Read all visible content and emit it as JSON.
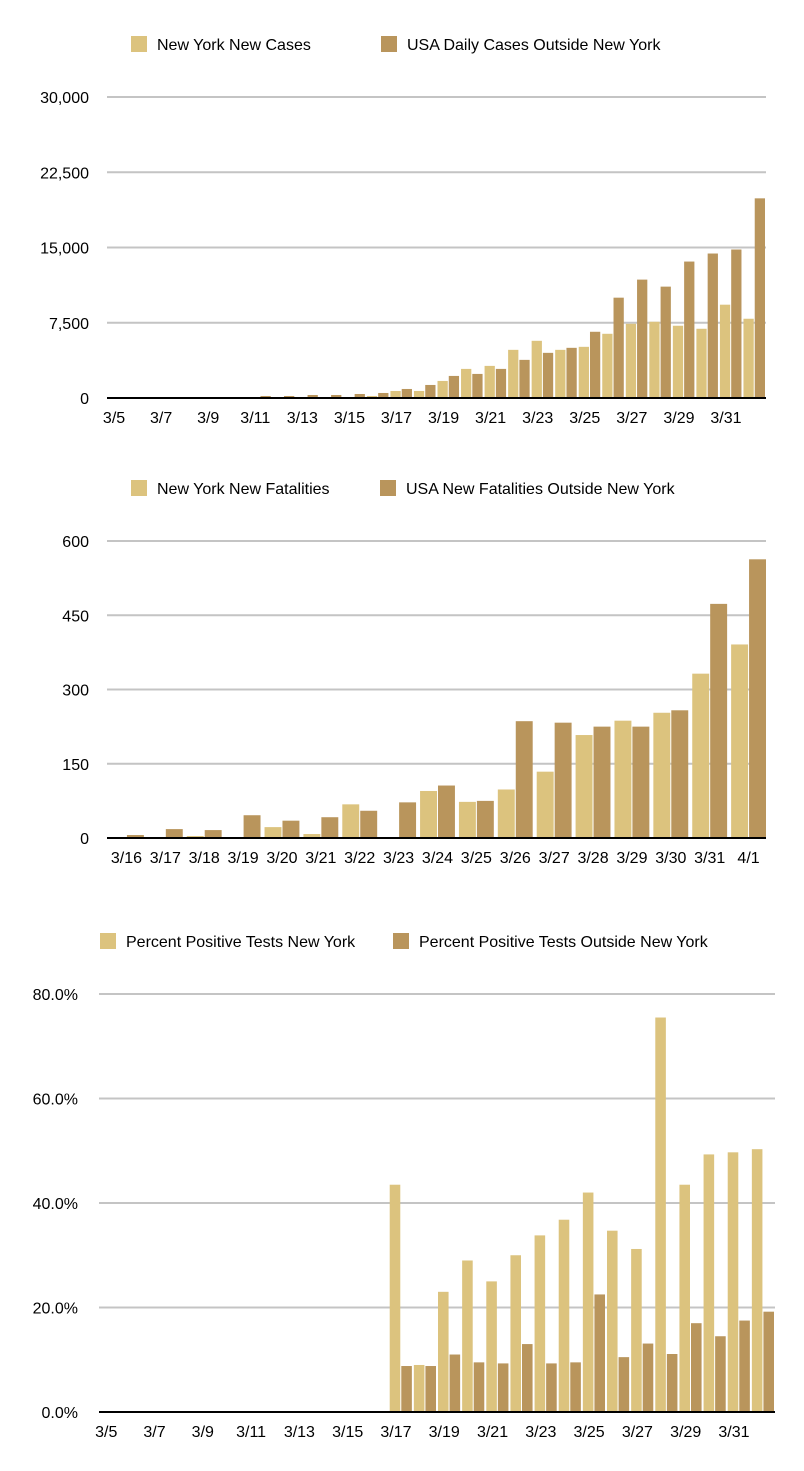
{
  "colors": {
    "new_york": "#dcc37e",
    "outside": "#b9955c"
  },
  "chart_data": [
    {
      "type": "bar",
      "title": "",
      "legend_position": "top",
      "grid": true,
      "ylim": [
        0,
        30000
      ],
      "yticks": [
        "0",
        "7,500",
        "15,000",
        "22,500",
        "30,000"
      ],
      "ytick_values": [
        0,
        7500,
        15000,
        22500,
        30000
      ],
      "x_tick_labels": [
        "3/5",
        "3/7",
        "3/9",
        "3/11",
        "3/13",
        "3/15",
        "3/17",
        "3/19",
        "3/21",
        "3/23",
        "3/25",
        "3/27",
        "3/29",
        "3/31"
      ],
      "categories": [
        "3/5",
        "3/6",
        "3/7",
        "3/8",
        "3/9",
        "3/10",
        "3/11",
        "3/12",
        "3/13",
        "3/14",
        "3/15",
        "3/16",
        "3/17",
        "3/18",
        "3/19",
        "3/20",
        "3/21",
        "3/22",
        "3/23",
        "3/24",
        "3/25",
        "3/26",
        "3/27",
        "3/28",
        "3/29",
        "3/30",
        "3/31",
        "4/1"
      ],
      "series": [
        {
          "name": "New York New Cases",
          "color_key": "new_york",
          "values": [
            0,
            0,
            0,
            0,
            0,
            0,
            50,
            50,
            60,
            50,
            100,
            200,
            700,
            700,
            1700,
            2900,
            3200,
            4800,
            5700,
            4800,
            5100,
            6400,
            7400,
            7600,
            7200,
            6900,
            9300,
            7900
          ]
        },
        {
          "name": "USA Daily Cases Outside New York",
          "color_key": "outside",
          "values": [
            0,
            0,
            0,
            0,
            0,
            0,
            200,
            200,
            300,
            300,
            400,
            500,
            900,
            1300,
            2200,
            2400,
            2900,
            3800,
            4500,
            5000,
            6600,
            10000,
            11800,
            11100,
            13600,
            14400,
            14800,
            19900
          ]
        }
      ]
    },
    {
      "type": "bar",
      "title": "",
      "legend_position": "top",
      "grid": true,
      "ylim": [
        0,
        600
      ],
      "yticks": [
        "0",
        "150",
        "300",
        "450",
        "600"
      ],
      "ytick_values": [
        0,
        150,
        300,
        450,
        600
      ],
      "x_tick_labels": [
        "3/16",
        "3/17",
        "3/18",
        "3/19",
        "3/20",
        "3/21",
        "3/22",
        "3/23",
        "3/24",
        "3/25",
        "3/26",
        "3/27",
        "3/28",
        "3/29",
        "3/30",
        "3/31",
        "4/1"
      ],
      "categories": [
        "3/16",
        "3/17",
        "3/18",
        "3/19",
        "3/20",
        "3/21",
        "3/22",
        "3/23",
        "3/24",
        "3/25",
        "3/26",
        "3/27",
        "3/28",
        "3/29",
        "3/30",
        "3/31",
        "4/1"
      ],
      "series": [
        {
          "name": "New York New Fatalities",
          "color_key": "new_york",
          "values": [
            2,
            1,
            4,
            0,
            22,
            8,
            68,
            0,
            95,
            73,
            98,
            134,
            208,
            237,
            253,
            332,
            391
          ]
        },
        {
          "name": "USA New Fatalities Outside New York",
          "color_key": "outside",
          "values": [
            6,
            18,
            16,
            46,
            35,
            42,
            55,
            72,
            106,
            75,
            236,
            233,
            225,
            225,
            258,
            473,
            563
          ]
        }
      ]
    },
    {
      "type": "bar",
      "title": "",
      "legend_position": "top",
      "grid": true,
      "ylim": [
        0,
        80
      ],
      "yticks": [
        "0.0%",
        "20.0%",
        "40.0%",
        "60.0%",
        "80.0%"
      ],
      "ytick_values": [
        0,
        20,
        40,
        60,
        80
      ],
      "x_tick_labels": [
        "3/5",
        "3/7",
        "3/9",
        "3/11",
        "3/13",
        "3/15",
        "3/17",
        "3/19",
        "3/21",
        "3/23",
        "3/25",
        "3/27",
        "3/29",
        "3/31"
      ],
      "categories": [
        "3/5",
        "3/6",
        "3/7",
        "3/8",
        "3/9",
        "3/10",
        "3/11",
        "3/12",
        "3/13",
        "3/14",
        "3/15",
        "3/16",
        "3/17",
        "3/18",
        "3/19",
        "3/20",
        "3/21",
        "3/22",
        "3/23",
        "3/24",
        "3/25",
        "3/26",
        "3/27",
        "3/28",
        "3/29",
        "3/30",
        "3/31",
        "4/1"
      ],
      "series": [
        {
          "name": "Percent Positive Tests New York",
          "color_key": "new_york",
          "values": [
            null,
            null,
            null,
            null,
            null,
            null,
            null,
            null,
            null,
            null,
            null,
            null,
            43.5,
            9.0,
            23.0,
            29.0,
            25.0,
            30.0,
            33.8,
            36.8,
            42.0,
            34.7,
            31.2,
            75.5,
            43.5,
            49.3,
            49.7,
            50.3
          ]
        },
        {
          "name": "Percent Positive Tests Outside New York",
          "color_key": "outside",
          "values": [
            null,
            null,
            null,
            null,
            null,
            null,
            null,
            null,
            null,
            null,
            null,
            null,
            8.8,
            8.8,
            11.0,
            9.5,
            9.3,
            13.0,
            9.3,
            9.5,
            22.5,
            10.5,
            13.1,
            11.1,
            17.0,
            14.5,
            17.5,
            19.2
          ]
        }
      ]
    }
  ]
}
